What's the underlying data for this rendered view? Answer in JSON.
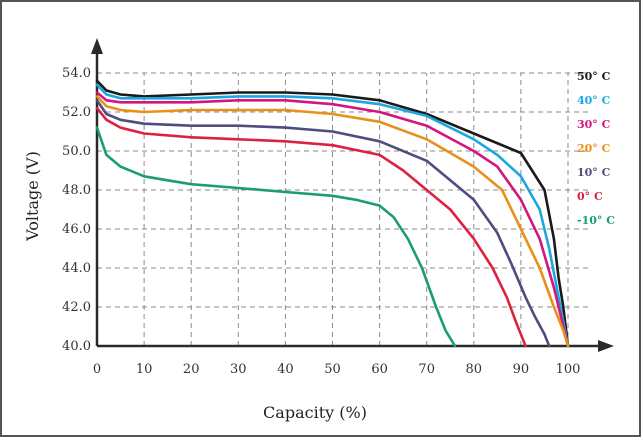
{
  "chart_data": {
    "type": "line",
    "xlabel": "Capacity (%)",
    "ylabel": "Voltage (V)",
    "xlim": [
      0,
      105
    ],
    "ylim": [
      40,
      54.5
    ],
    "x_ticks": [
      0,
      10,
      20,
      30,
      40,
      50,
      60,
      70,
      80,
      90,
      100
    ],
    "y_ticks": [
      40,
      42,
      44,
      46,
      48,
      50,
      52,
      54
    ],
    "x_tick_labels": [
      "0",
      "10",
      "20",
      "30",
      "40",
      "50",
      "60",
      "70",
      "80",
      "90",
      "100"
    ],
    "y_tick_labels": [
      "40.0",
      "42.0",
      "44.0",
      "46.0",
      "48.0",
      "50.0",
      "52.0",
      "54.0"
    ],
    "grid": true,
    "legend_position": "right",
    "series": [
      {
        "name": "50° C",
        "color": "#1a1a1a",
        "x": [
          0,
          2,
          5,
          10,
          20,
          30,
          40,
          50,
          60,
          70,
          80,
          90,
          95,
          97,
          98,
          99,
          100
        ],
        "y": [
          53.6,
          53.1,
          52.9,
          52.8,
          52.9,
          53.0,
          53.0,
          52.9,
          52.6,
          51.9,
          50.9,
          49.9,
          48.0,
          45.5,
          43.5,
          42.0,
          40.0
        ]
      },
      {
        "name": "40° C",
        "color": "#1ba7e0",
        "x": [
          0,
          2,
          5,
          10,
          20,
          30,
          40,
          50,
          60,
          70,
          80,
          85,
          90,
          94,
          96,
          98,
          100
        ],
        "y": [
          53.4,
          52.9,
          52.7,
          52.7,
          52.7,
          52.8,
          52.8,
          52.7,
          52.4,
          51.8,
          50.6,
          49.8,
          48.7,
          47.0,
          45.0,
          42.5,
          40.0
        ]
      },
      {
        "name": "30° C",
        "color": "#d4157e",
        "x": [
          0,
          2,
          5,
          10,
          20,
          30,
          40,
          50,
          60,
          70,
          80,
          85,
          90,
          94,
          97,
          99,
          100
        ],
        "y": [
          53.0,
          52.6,
          52.5,
          52.5,
          52.5,
          52.6,
          52.6,
          52.4,
          52.0,
          51.3,
          50.0,
          49.2,
          47.5,
          45.5,
          43.0,
          41.0,
          40.0
        ]
      },
      {
        "name": "20° C",
        "color": "#e8901a",
        "x": [
          0,
          2,
          5,
          10,
          20,
          30,
          40,
          50,
          60,
          70,
          80,
          86,
          90,
          94,
          97,
          99,
          100
        ],
        "y": [
          52.8,
          52.3,
          52.1,
          52.0,
          52.1,
          52.1,
          52.1,
          51.9,
          51.5,
          50.6,
          49.2,
          48.0,
          46.0,
          44.0,
          42.0,
          40.8,
          40.0
        ]
      },
      {
        "name": "10° C",
        "color": "#4d4d7f",
        "x": [
          0,
          2,
          5,
          10,
          20,
          30,
          40,
          50,
          60,
          70,
          80,
          85,
          88,
          91,
          93,
          95,
          96
        ],
        "y": [
          52.6,
          51.9,
          51.6,
          51.4,
          51.3,
          51.3,
          51.2,
          51.0,
          50.5,
          49.5,
          47.5,
          45.8,
          44.2,
          42.5,
          41.5,
          40.6,
          40.0
        ]
      },
      {
        "name": "0° C",
        "color": "#dd2240",
        "x": [
          0,
          2,
          5,
          10,
          20,
          30,
          40,
          50,
          60,
          65,
          70,
          75,
          80,
          84,
          87,
          89,
          90,
          91
        ],
        "y": [
          52.2,
          51.6,
          51.2,
          50.9,
          50.7,
          50.6,
          50.5,
          50.3,
          49.8,
          49.0,
          48.0,
          47.0,
          45.5,
          44.0,
          42.5,
          41.2,
          40.6,
          40.0
        ]
      },
      {
        "name": "-10° C",
        "color": "#1a9f6a",
        "x": [
          0,
          2,
          5,
          10,
          15,
          20,
          30,
          40,
          50,
          55,
          60,
          63,
          66,
          69,
          72,
          74,
          76
        ],
        "y": [
          51.2,
          49.8,
          49.2,
          48.7,
          48.5,
          48.3,
          48.1,
          47.9,
          47.7,
          47.5,
          47.2,
          46.6,
          45.5,
          44.0,
          42.0,
          40.8,
          40.0
        ]
      }
    ]
  }
}
